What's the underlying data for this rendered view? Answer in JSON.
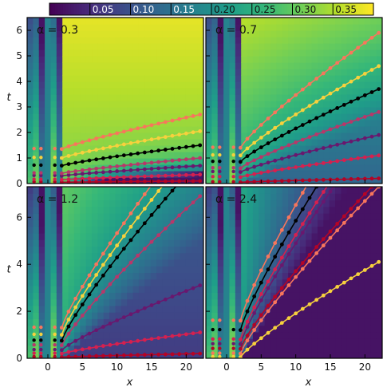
{
  "colors": {
    "map_low": "#440154",
    "map_high": "#fde725",
    "series_palette": [
      "#b40426",
      "#d6204f",
      "#6a176e",
      "#b8376a",
      "#000000",
      "#f7d13d",
      "#f8765c"
    ]
  },
  "colorbar": {
    "min": 0.0,
    "max": 0.4,
    "ticks": [
      0.05,
      0.1,
      0.15,
      0.2,
      0.25,
      0.3,
      0.35
    ],
    "tick_labels": [
      "0.05",
      "0.10",
      "0.15",
      "0.20",
      "0.25",
      "0.30",
      "0.35"
    ]
  },
  "chart_data": [
    {
      "type": "heatmap",
      "panel": "top-left",
      "annotation": "α = 0.3",
      "alpha": 0.3,
      "xlabel": "",
      "ylabel": "t",
      "xlim": [
        -3,
        22.5
      ],
      "ylim": [
        0,
        6.5
      ],
      "xticks": [
        0,
        5,
        10,
        15,
        20
      ],
      "yticks": [
        0,
        1,
        2,
        3,
        4,
        5,
        6
      ],
      "series": [
        {
          "color": "#b40426",
          "x": [
            2,
            22
          ],
          "y": [
            0.05,
            0.1
          ]
        },
        {
          "color": "#d6204f",
          "x": [
            2,
            22
          ],
          "y": [
            0.15,
            0.35
          ]
        },
        {
          "color": "#6a176e",
          "x": [
            2,
            22
          ],
          "y": [
            0.3,
            0.7
          ]
        },
        {
          "color": "#b8376a",
          "x": [
            2,
            22
          ],
          "y": [
            0.4,
            1.0
          ]
        },
        {
          "color": "#000000",
          "x": [
            2,
            22
          ],
          "y": [
            0.7,
            1.5
          ]
        },
        {
          "color": "#f7d13d",
          "x": [
            2,
            22
          ],
          "y": [
            1.0,
            2.05
          ]
        },
        {
          "color": "#f8765c",
          "x": [
            2,
            22
          ],
          "y": [
            1.35,
            2.7
          ]
        }
      ]
    },
    {
      "type": "heatmap",
      "panel": "top-right",
      "annotation": "α = 0.7",
      "alpha": 0.7,
      "xlabel": "",
      "ylabel": "",
      "xlim": [
        -3,
        22.5
      ],
      "ylim": [
        0,
        6.5
      ],
      "xticks": [
        0,
        5,
        10,
        15,
        20
      ],
      "yticks": [
        0,
        1,
        2,
        3,
        4,
        5,
        6
      ],
      "series": [
        {
          "color": "#b40426",
          "x": [
            2,
            22
          ],
          "y": [
            0.05,
            0.2
          ]
        },
        {
          "color": "#d6204f",
          "x": [
            2,
            22
          ],
          "y": [
            0.25,
            1.1
          ]
        },
        {
          "color": "#6a176e",
          "x": [
            2,
            22
          ],
          "y": [
            0.45,
            1.9
          ]
        },
        {
          "color": "#b8376a",
          "x": [
            2,
            22
          ],
          "y": [
            0.6,
            2.8
          ]
        },
        {
          "color": "#000000",
          "x": [
            2,
            22
          ],
          "y": [
            0.85,
            3.7
          ]
        },
        {
          "color": "#f7d13d",
          "x": [
            2,
            22
          ],
          "y": [
            1.1,
            4.6
          ]
        },
        {
          "color": "#f8765c",
          "x": [
            2,
            22
          ],
          "y": [
            1.4,
            5.9
          ]
        }
      ]
    },
    {
      "type": "heatmap",
      "panel": "bottom-left",
      "annotation": "α = 1.2",
      "alpha": 1.2,
      "xlabel": "x",
      "ylabel": "t",
      "xlim": [
        -3,
        22.5
      ],
      "ylim": [
        0,
        7.3
      ],
      "xticks": [
        0,
        5,
        10,
        15,
        20
      ],
      "yticks": [
        0,
        2,
        4,
        6
      ],
      "series": [
        {
          "color": "#b40426",
          "x": [
            2,
            22
          ],
          "y": [
            0.05,
            0.2
          ]
        },
        {
          "color": "#d6204f",
          "x": [
            2,
            22
          ],
          "y": [
            0.2,
            1.1
          ]
        },
        {
          "color": "#6a176e",
          "x": [
            2,
            22
          ],
          "y": [
            0.35,
            3.1
          ]
        },
        {
          "color": "#b8376a",
          "x": [
            2,
            22
          ],
          "y": [
            0.55,
            6.9
          ]
        },
        {
          "color": "#000000",
          "x": [
            2,
            18.5
          ],
          "y": [
            0.75,
            7.3
          ]
        },
        {
          "color": "#f7d13d",
          "x": [
            2,
            16.5
          ],
          "y": [
            1.0,
            7.3
          ]
        },
        {
          "color": "#f8765c",
          "x": [
            2,
            14.8
          ],
          "y": [
            1.3,
            7.3
          ]
        }
      ]
    },
    {
      "type": "heatmap",
      "panel": "bottom-right",
      "annotation": "α = 2.4",
      "alpha": 2.4,
      "xlabel": "x",
      "ylabel": "",
      "xlim": [
        -3,
        22.5
      ],
      "ylim": [
        0,
        7.3
      ],
      "xticks": [
        0,
        5,
        10,
        15,
        20
      ],
      "yticks": [
        0,
        2,
        4,
        6
      ],
      "series": [
        {
          "color": "#f7d13d",
          "x": [
            2,
            22
          ],
          "y": [
            0.05,
            4.1
          ]
        },
        {
          "color": "#f8765c",
          "x": [
            2,
            22
          ],
          "y": [
            0.2,
            7.3
          ]
        },
        {
          "color": "#b40426",
          "x": [
            2,
            21
          ],
          "y": [
            0.4,
            7.3
          ]
        },
        {
          "color": "#6a176e",
          "x": [
            2,
            15.5
          ],
          "y": [
            0.6,
            7.3
          ]
        },
        {
          "color": "#d6204f",
          "x": [
            2,
            14.5
          ],
          "y": [
            0.8,
            7.3
          ]
        },
        {
          "color": "#000000",
          "x": [
            2,
            13.0
          ],
          "y": [
            1.2,
            7.3
          ]
        },
        {
          "color": "#f8765c",
          "x": [
            2,
            11.5
          ],
          "y": [
            1.6,
            7.3
          ]
        }
      ]
    }
  ]
}
